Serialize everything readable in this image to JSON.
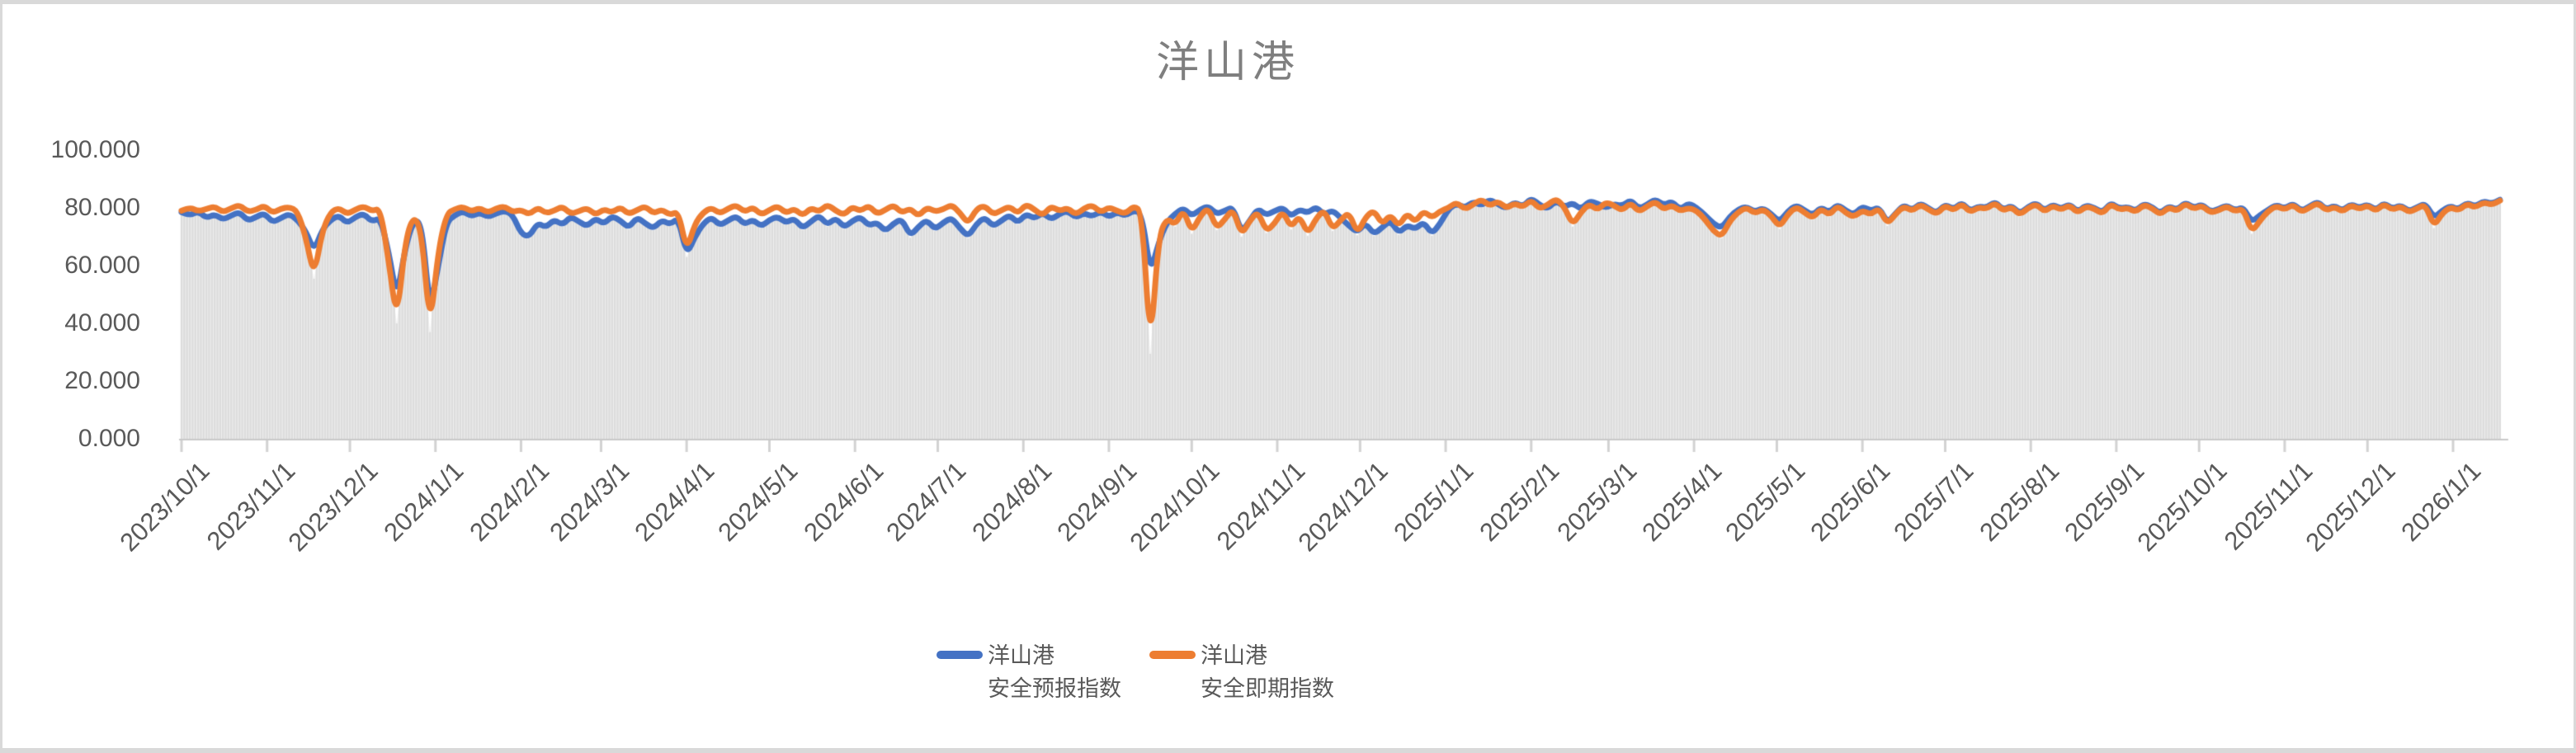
{
  "window": {
    "frame_color": "#d9d9d9",
    "background": "#ffffff"
  },
  "chart": {
    "title": "洋山港",
    "title_color": "#7f7f7f",
    "axis_text_color": "#595959",
    "axis_line_color": "#c9c9c9",
    "tick_color": "#d2d2d2",
    "stripe_color": "#dcdcdc",
    "stripe_gap_fill": "#efefef"
  },
  "legend": {
    "position": "bottom",
    "items": [
      {
        "name_line1": "洋山港",
        "name_line2": "安全预报指数",
        "color": "#4472C4"
      },
      {
        "name_line1": "洋山港",
        "name_line2": "安全即期指数",
        "color": "#ED7D31"
      }
    ]
  },
  "chart_data": {
    "type": "line",
    "title": "洋山港",
    "xlabel": "",
    "ylabel": "",
    "ylim": [
      0,
      100
    ],
    "grid": "vertical-drop-lines-per-day",
    "legend_position": "bottom",
    "x_start_date": "2023/10/1",
    "x_end_date": "2026/1/20",
    "sample_step_days": 3,
    "y_tick_values": [
      100,
      80,
      60,
      40,
      20,
      0
    ],
    "y_tick_labels": [
      "100.000",
      "80.000",
      "60.000",
      "40.000",
      "20.000",
      "0.000"
    ],
    "x_ticks": [
      {
        "label": "2023/10/1",
        "day": 0
      },
      {
        "label": "2023/11/1",
        "day": 31
      },
      {
        "label": "2023/12/1",
        "day": 61
      },
      {
        "label": "2024/1/1",
        "day": 92
      },
      {
        "label": "2024/2/1",
        "day": 123
      },
      {
        "label": "2024/3/1",
        "day": 152
      },
      {
        "label": "2024/4/1",
        "day": 183
      },
      {
        "label": "2024/5/1",
        "day": 213
      },
      {
        "label": "2024/6/1",
        "day": 244
      },
      {
        "label": "2024/7/1",
        "day": 274
      },
      {
        "label": "2024/8/1",
        "day": 305
      },
      {
        "label": "2024/9/1",
        "day": 336
      },
      {
        "label": "2024/10/1",
        "day": 366
      },
      {
        "label": "2024/11/1",
        "day": 397
      },
      {
        "label": "2024/12/1",
        "day": 427
      },
      {
        "label": "2025/1/1",
        "day": 458
      },
      {
        "label": "2025/2/1",
        "day": 489
      },
      {
        "label": "2025/3/1",
        "day": 517
      },
      {
        "label": "2025/4/1",
        "day": 548
      },
      {
        "label": "2025/5/1",
        "day": 578
      },
      {
        "label": "2025/6/1",
        "day": 609
      },
      {
        "label": "2025/7/1",
        "day": 639
      },
      {
        "label": "2025/8/1",
        "day": 670
      },
      {
        "label": "2025/9/1",
        "day": 701
      },
      {
        "label": "2025/10/1",
        "day": 731
      },
      {
        "label": "2025/11/1",
        "day": 762
      },
      {
        "label": "2025/12/1",
        "day": 792
      },
      {
        "label": "2026/1/1",
        "day": 823
      }
    ],
    "series": [
      {
        "name": "洋山港 安全预报指数",
        "color": "#4472C4",
        "values": [
          78.5,
          77.2,
          78.9,
          76.4,
          77.8,
          75.9,
          77.3,
          78.6,
          75.5,
          76.8,
          78.2,
          74.9,
          76.5,
          77.9,
          75.8,
          72.0,
          65.0,
          72.5,
          75.8,
          77.4,
          74.6,
          76.9,
          78.0,
          75.2,
          76.6,
          65.0,
          48.5,
          66.0,
          75.5,
          75.0,
          44.0,
          60.0,
          75.0,
          77.5,
          78.8,
          77.0,
          78.4,
          76.8,
          78.0,
          79.0,
          77.6,
          71.0,
          70.0,
          74.8,
          73.2,
          76.0,
          74.0,
          77.0,
          75.2,
          73.6,
          76.4,
          74.4,
          77.2,
          75.6,
          73.0,
          76.8,
          74.6,
          72.8,
          75.8,
          74.2,
          76.5,
          63.5,
          70.0,
          74.5,
          76.8,
          73.9,
          75.6,
          77.2,
          74.2,
          76.0,
          73.5,
          75.8,
          77.0,
          74.8,
          76.4,
          72.9,
          75.2,
          77.4,
          74.0,
          76.6,
          73.2,
          75.4,
          76.9,
          73.8,
          75.0,
          71.8,
          74.6,
          76.2,
          70.2,
          73.4,
          75.9,
          72.5,
          74.9,
          76.6,
          73.0,
          70.0,
          74.4,
          76.8,
          73.6,
          75.5,
          77.6,
          74.7,
          78.0,
          76.2,
          78.4,
          75.9,
          77.8,
          79.0,
          76.5,
          78.2,
          77.0,
          78.8,
          76.8,
          78.5,
          77.2,
          79.2,
          78.0,
          57.0,
          68.0,
          75.0,
          78.0,
          80.0,
          77.2,
          79.4,
          80.6,
          77.8,
          79.0,
          80.3,
          71.5,
          75.5,
          79.8,
          77.4,
          78.9,
          80.1,
          77.0,
          79.5,
          78.2,
          80.4,
          77.6,
          79.2,
          76.5,
          73.8,
          71.5,
          74.8,
          70.8,
          73.2,
          75.6,
          71.2,
          74.0,
          72.6,
          75.2,
          70.9,
          74.5,
          79.5,
          81.5,
          80.0,
          82.2,
          80.8,
          83.0,
          81.2,
          79.8,
          82.0,
          80.4,
          83.4,
          81.0,
          79.6,
          82.6,
          80.2,
          81.8,
          79.4,
          82.4,
          81.6,
          79.9,
          81.4,
          80.6,
          82.8,
          79.7,
          81.1,
          83.1,
          80.9,
          82.3,
          79.3,
          81.7,
          80.0,
          77.5,
          74.5,
          73.0,
          77.0,
          79.5,
          80.5,
          78.6,
          80.0,
          77.8,
          75.2,
          78.8,
          81.0,
          79.2,
          77.4,
          80.2,
          78.4,
          81.2,
          79.0,
          77.6,
          80.6,
          78.9,
          80.3,
          74.8,
          78.0,
          81.0,
          79.2,
          81.6,
          79.8,
          78.2,
          81.3,
          79.4,
          82.0,
          78.8,
          80.6,
          80.0,
          82.2,
          79.3,
          80.8,
          78.0,
          80.3,
          81.7,
          79.0,
          81.2,
          79.6,
          81.4,
          78.6,
          80.9,
          80.1,
          78.3,
          81.8,
          79.7,
          80.4,
          78.9,
          81.5,
          80.2,
          78.1,
          80.7,
          79.2,
          82.0,
          79.9,
          81.3,
          78.7,
          79.5,
          81.0,
          79.1,
          80.3,
          75.0,
          77.5,
          79.3,
          81.1,
          79.7,
          81.6,
          78.9,
          80.5,
          82.2,
          79.4,
          80.8,
          79.0,
          81.4,
          79.9,
          81.3,
          79.2,
          81.8,
          79.6,
          81.0,
          78.8,
          80.2,
          81.6,
          76.5,
          79.0,
          80.7,
          79.4,
          81.9,
          80.4,
          82.4,
          81.4,
          82.8
        ]
      },
      {
        "name": "洋山港 安全即期指数",
        "color": "#ED7D31",
        "values": [
          79.0,
          80.2,
          78.8,
          79.6,
          80.5,
          78.4,
          79.9,
          81.0,
          78.6,
          79.3,
          80.8,
          78.2,
          79.7,
          80.3,
          78.9,
          70.0,
          56.0,
          72.0,
          78.5,
          80.0,
          77.8,
          79.4,
          80.6,
          78.8,
          79.9,
          62.0,
          40.5,
          68.0,
          77.5,
          72.0,
          37.5,
          65.0,
          78.0,
          79.6,
          80.4,
          78.7,
          80.0,
          78.3,
          79.8,
          80.6,
          78.5,
          79.4,
          77.6,
          80.2,
          78.1,
          79.0,
          80.5,
          77.9,
          78.8,
          80.0,
          77.5,
          79.6,
          78.3,
          80.3,
          77.8,
          79.2,
          80.6,
          78.0,
          79.5,
          77.4,
          78.9,
          65.0,
          74.5,
          78.4,
          80.1,
          78.0,
          79.7,
          81.0,
          78.5,
          80.3,
          77.6,
          79.2,
          80.7,
          78.1,
          79.8,
          77.2,
          80.0,
          78.6,
          81.2,
          79.0,
          77.5,
          80.4,
          78.8,
          80.9,
          77.8,
          79.3,
          81.0,
          78.2,
          79.9,
          77.0,
          80.2,
          78.7,
          79.5,
          81.1,
          78.3,
          74.5,
          79.6,
          80.8,
          77.7,
          79.1,
          80.5,
          78.0,
          81.3,
          79.4,
          77.3,
          80.6,
          78.9,
          80.0,
          77.6,
          79.8,
          81.0,
          78.4,
          80.2,
          79.0,
          77.9,
          80.7,
          78.6,
          30.0,
          70.0,
          76.5,
          74.0,
          79.5,
          71.5,
          77.0,
          80.2,
          72.8,
          76.0,
          79.8,
          70.5,
          75.5,
          78.8,
          71.8,
          74.5,
          79.0,
          73.0,
          77.5,
          70.8,
          76.2,
          79.4,
          72.5,
          75.8,
          78.5,
          71.0,
          76.8,
          79.2,
          74.2,
          77.8,
          73.5,
          78.2,
          75.0,
          79.0,
          76.5,
          78.8,
          80.0,
          82.0,
          79.4,
          81.2,
          83.0,
          80.6,
          82.4,
          79.8,
          81.6,
          80.2,
          82.8,
          79.6,
          81.0,
          83.2,
          80.4,
          74.0,
          78.5,
          81.4,
          79.2,
          82.0,
          80.8,
          79.0,
          81.8,
          78.6,
          80.5,
          82.2,
          79.4,
          81.0,
          78.8,
          80.0,
          79.0,
          76.0,
          72.0,
          70.0,
          75.5,
          78.5,
          80.2,
          78.0,
          79.6,
          77.2,
          73.2,
          77.8,
          80.4,
          78.4,
          76.4,
          79.8,
          77.4,
          80.8,
          78.2,
          76.8,
          79.2,
          77.6,
          80.0,
          74.3,
          77.8,
          80.6,
          78.8,
          81.2,
          79.4,
          77.8,
          80.9,
          79.0,
          81.5,
          78.4,
          80.2,
          79.6,
          81.8,
          78.9,
          80.4,
          77.5,
          79.9,
          81.3,
          78.6,
          80.8,
          79.2,
          81.0,
          78.2,
          80.5,
          79.7,
          77.9,
          81.4,
          79.3,
          80.0,
          78.5,
          81.1,
          79.8,
          77.6,
          80.3,
          78.8,
          81.6,
          79.5,
          80.9,
          78.3,
          79.1,
          80.6,
          78.7,
          79.9,
          71.5,
          75.5,
          78.9,
          80.7,
          79.3,
          81.2,
          78.5,
          80.1,
          81.8,
          79.0,
          80.4,
          78.6,
          81.0,
          79.5,
          80.9,
          78.8,
          81.4,
          79.2,
          80.6,
          78.4,
          79.8,
          81.2,
          73.5,
          78.0,
          80.3,
          79.0,
          81.5,
          80.0,
          82.0,
          81.0,
          82.5
        ]
      }
    ]
  }
}
